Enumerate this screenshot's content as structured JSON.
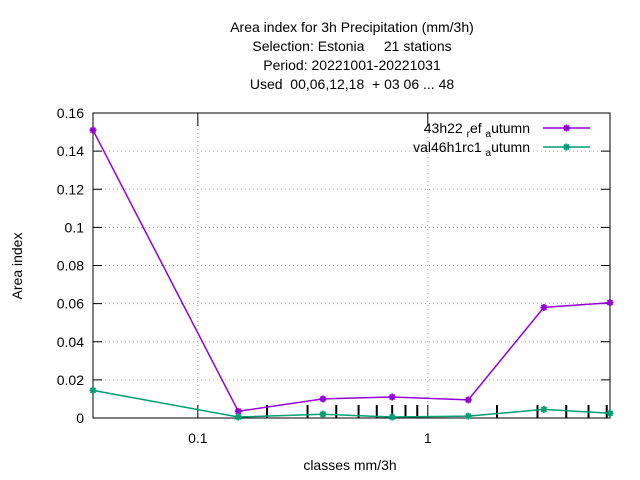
{
  "chart_data": {
    "type": "line",
    "title_lines": [
      "Area index  for 3h Precipitation (mm/3h)",
      "Selection: Estonia     21 stations",
      "Period: 20221001-20221031",
      "Used  00,06,12,18  + 03 06 ... 48"
    ],
    "xlabel": "classes mm/3h",
    "ylabel": "Area index",
    "x_scale": "log",
    "xlim": [
      0.035,
      6.2
    ],
    "ylim": [
      0,
      0.16
    ],
    "y_ticks": [
      0,
      0.02,
      0.04,
      0.06,
      0.08,
      0.1,
      0.12,
      0.14,
      0.16
    ],
    "y_tick_labels": [
      "0",
      "0.02",
      "0.04",
      "0.06",
      "0.08",
      "0.1",
      "0.12",
      "0.14",
      "0.16"
    ],
    "x_major_ticks": [
      0.1,
      1
    ],
    "x_major_tick_labels": [
      "0.1",
      "1"
    ],
    "x_minor_ticks": [
      0.2,
      0.3,
      0.4,
      0.5,
      0.6,
      0.7,
      0.8,
      0.9,
      2,
      3,
      4,
      5,
      6
    ],
    "grid": true,
    "legend_position": "top-right",
    "x": [
      0.035,
      0.15,
      0.35,
      0.7,
      1.5,
      3.2,
      6.2
    ],
    "series": [
      {
        "name_main": "43h22",
        "name_sub1": "r",
        "name_mid": "ef",
        "name_sub2": "a",
        "name_tail": "utumn",
        "color": "#9400d3",
        "values": [
          0.151,
          0.0035,
          0.01,
          0.011,
          0.0095,
          0.058,
          0.0605
        ]
      },
      {
        "name_main": "val46h1rc1",
        "name_sub1": "",
        "name_mid": "",
        "name_sub2": "a",
        "name_tail": "utumn",
        "color": "#009e73",
        "values": [
          0.0145,
          0.0005,
          0.002,
          0.0005,
          0.001,
          0.0045,
          0.0025
        ]
      }
    ]
  }
}
